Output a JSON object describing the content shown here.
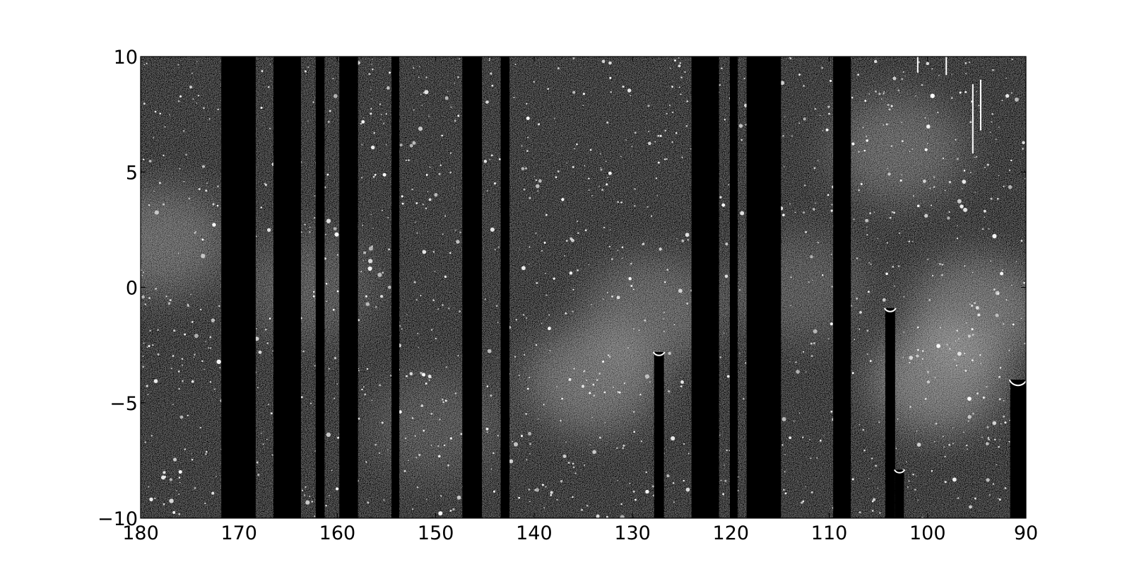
{
  "chart_data": {
    "type": "heatmap",
    "colormap": "gray",
    "background_color": "#000000",
    "foreground_color": "#ffffff",
    "x_axis": {
      "range": [
        180,
        90
      ],
      "inverted": true,
      "ticks": [
        180,
        170,
        160,
        150,
        140,
        130,
        120,
        110,
        100,
        90
      ],
      "tick_labels": [
        "180",
        "170",
        "160",
        "150",
        "140",
        "130",
        "120",
        "110",
        "100",
        "90"
      ]
    },
    "y_axis": {
      "range": [
        -10,
        10
      ],
      "ticks": [
        10,
        5,
        0,
        -5,
        -10
      ],
      "tick_labels": [
        "10",
        "5",
        "0",
        "−5",
        "−10"
      ]
    },
    "grid": false,
    "title": "",
    "xlabel": "",
    "ylabel": "",
    "masked_full_strips": [
      {
        "x_from": 171.8,
        "x_to": 168.3
      },
      {
        "x_from": 166.5,
        "x_to": 163.7
      },
      {
        "x_from": 162.2,
        "x_to": 161.3
      },
      {
        "x_from": 159.8,
        "x_to": 157.9
      },
      {
        "x_from": 154.5,
        "x_to": 153.7
      },
      {
        "x_from": 147.3,
        "x_to": 145.3
      },
      {
        "x_from": 143.4,
        "x_to": 142.5
      },
      {
        "x_from": 124.0,
        "x_to": 121.2
      },
      {
        "x_from": 120.1,
        "x_to": 119.3
      },
      {
        "x_from": 118.4,
        "x_to": 114.9
      },
      {
        "x_from": 109.6,
        "x_to": 107.8
      }
    ],
    "masked_partial_strips": [
      {
        "x_from": 127.8,
        "x_to": 126.8,
        "y_top": -2.8
      },
      {
        "x_from": 104.3,
        "x_to": 103.3,
        "y_top": -0.9
      },
      {
        "x_from": 103.3,
        "x_to": 102.4,
        "y_top": -7.9
      },
      {
        "x_from": 91.6,
        "x_to": 90.0,
        "y_top": -4.0
      }
    ],
    "bright_regions": [
      {
        "x": 178,
        "y": 2,
        "level": 0.22
      },
      {
        "x": 134,
        "y": -4,
        "level": 0.26
      },
      {
        "x": 128,
        "y": -1,
        "level": 0.2
      },
      {
        "x": 99,
        "y": -4,
        "level": 0.3
      },
      {
        "x": 95,
        "y": -1,
        "level": 0.26
      },
      {
        "x": 103,
        "y": 6,
        "level": 0.2
      },
      {
        "x": 113,
        "y": 0,
        "level": 0.14
      },
      {
        "x": 150,
        "y": -6,
        "level": 0.12
      },
      {
        "x": 163,
        "y": 0,
        "level": 0.14
      }
    ],
    "streaks": [
      {
        "x": 95.4,
        "y_from": 5.8,
        "y_to": 8.8
      },
      {
        "x": 94.6,
        "y_from": 6.8,
        "y_to": 9.0
      },
      {
        "x": 98.1,
        "y_from": 9.2,
        "y_to": 10.0
      },
      {
        "x": 101.0,
        "y_from": 9.3,
        "y_to": 10.0
      }
    ]
  }
}
